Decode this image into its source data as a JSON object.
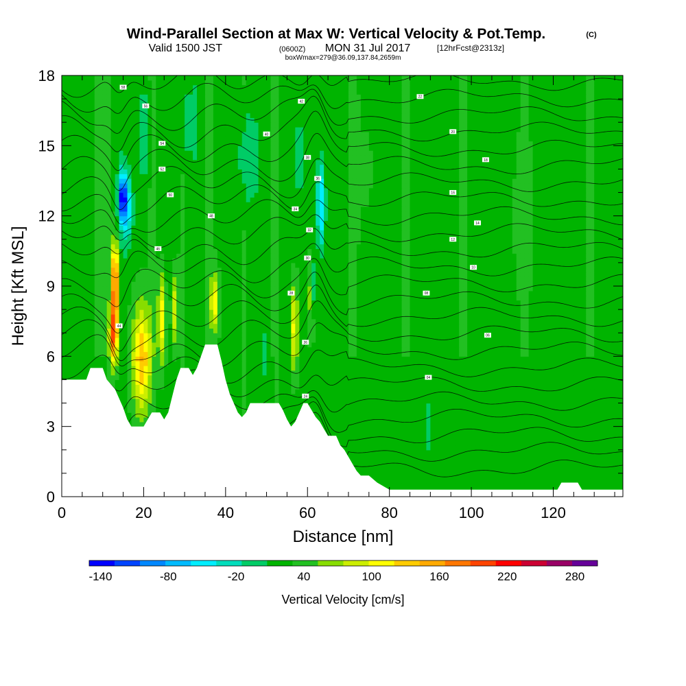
{
  "header": {
    "title": "Wind-Parallel Section at Max W: Vertical Velocity & Pot.Temp.",
    "title_mark": "(C)",
    "valid_prefix": "Valid 1500 JST",
    "valid_zulu": "(0600Z)",
    "valid_date": "MON 31 Jul 2017",
    "forecast": "[12hrFcst@2313z]",
    "boxinfo": "boxWmax=279@36.09,137.84,2659m"
  },
  "chart_data": {
    "type": "heatmap",
    "title": "Wind-Parallel Section at Max W: Vertical Velocity & Pot.Temp.",
    "xlabel": "Distance [nm]",
    "ylabel": "Height [Kft MSL]",
    "xlim": [
      0,
      137
    ],
    "ylim": [
      0,
      18
    ],
    "x_ticks": [
      0,
      20,
      40,
      60,
      80,
      100,
      120
    ],
    "y_ticks": [
      0,
      3,
      6,
      9,
      12,
      15,
      18
    ],
    "colorbar": {
      "label": "Vertical Velocity [cm/s]",
      "tick_labels": [
        "-140",
        "-80",
        "-20",
        "40",
        "100",
        "160",
        "220",
        "280"
      ],
      "tick_values": [
        -140,
        -80,
        -20,
        40,
        100,
        160,
        220,
        280
      ],
      "min": -150,
      "max": 300,
      "step": 20,
      "colors": [
        "#0000ff",
        "#0044ff",
        "#0088ff",
        "#00bbff",
        "#00eeff",
        "#00ddbb",
        "#00cc66",
        "#00b400",
        "#22c022",
        "#88dd00",
        "#ccee00",
        "#ffff00",
        "#ffcc00",
        "#ffaa00",
        "#ff7700",
        "#ff4400",
        "#ff0000",
        "#cc0033",
        "#990066",
        "#660099"
      ]
    },
    "terrain": [
      [
        0,
        5
      ],
      [
        6,
        5
      ],
      [
        7,
        5.5
      ],
      [
        10,
        5.5
      ],
      [
        11,
        5
      ],
      [
        12,
        4.8
      ],
      [
        13,
        4.6
      ],
      [
        14,
        4.2
      ],
      [
        15,
        3.8
      ],
      [
        16,
        3.3
      ],
      [
        17,
        3
      ],
      [
        20,
        3
      ],
      [
        21,
        3.3
      ],
      [
        22,
        3.6
      ],
      [
        24,
        3.6
      ],
      [
        25,
        3.3
      ],
      [
        26,
        3.6
      ],
      [
        27,
        4.3
      ],
      [
        28,
        5
      ],
      [
        29,
        5.5
      ],
      [
        31,
        5.5
      ],
      [
        32,
        5.2
      ],
      [
        33,
        5.5
      ],
      [
        34,
        6
      ],
      [
        35,
        6.5
      ],
      [
        38,
        6.5
      ],
      [
        39,
        5.8
      ],
      [
        40,
        5
      ],
      [
        41,
        4.4
      ],
      [
        42,
        4
      ],
      [
        43,
        3.6
      ],
      [
        44,
        3.4
      ],
      [
        45,
        3.6
      ],
      [
        46,
        4
      ],
      [
        53,
        4
      ],
      [
        54,
        3.7
      ],
      [
        55,
        3.3
      ],
      [
        56,
        3
      ],
      [
        57,
        3.2
      ],
      [
        58,
        3.6
      ],
      [
        59,
        4
      ],
      [
        60,
        4
      ],
      [
        61,
        3.7
      ],
      [
        62,
        3.4
      ],
      [
        63,
        3.2
      ],
      [
        64,
        2.9
      ],
      [
        65,
        2.6
      ],
      [
        67,
        2.6
      ],
      [
        68,
        2.2
      ],
      [
        69,
        2
      ],
      [
        70,
        1.7
      ],
      [
        71,
        1.4
      ],
      [
        72,
        1.1
      ],
      [
        73,
        0.9
      ],
      [
        75,
        0.9
      ],
      [
        77,
        0.6
      ],
      [
        79,
        0.4
      ],
      [
        80,
        0.3
      ],
      [
        121,
        0.3
      ],
      [
        122,
        0.6
      ],
      [
        126,
        0.6
      ],
      [
        127,
        0.3
      ],
      [
        130,
        0.3
      ],
      [
        132,
        0.3
      ],
      [
        137,
        0.3
      ]
    ],
    "contour_labels": [
      {
        "text": "58",
        "x": 15,
        "y": 17.5
      },
      {
        "text": "56",
        "x": 20.5,
        "y": 16.7
      },
      {
        "text": "54",
        "x": 24.5,
        "y": 15.1
      },
      {
        "text": "52",
        "x": 24.5,
        "y": 14.0
      },
      {
        "text": "50",
        "x": 26.5,
        "y": 12.9
      },
      {
        "text": "48",
        "x": 36.5,
        "y": 12.0
      },
      {
        "text": "46",
        "x": 23.5,
        "y": 10.6
      },
      {
        "text": "44",
        "x": 14,
        "y": 7.3
      },
      {
        "text": "42",
        "x": 58.5,
        "y": 16.9
      },
      {
        "text": "40",
        "x": 50,
        "y": 15.5
      },
      {
        "text": "38",
        "x": 60,
        "y": 14.5
      },
      {
        "text": "36",
        "x": 62.5,
        "y": 13.6
      },
      {
        "text": "34",
        "x": 57,
        "y": 12.3
      },
      {
        "text": "32",
        "x": 60.5,
        "y": 11.4
      },
      {
        "text": "30",
        "x": 60,
        "y": 10.2
      },
      {
        "text": "28",
        "x": 56,
        "y": 8.7
      },
      {
        "text": "26",
        "x": 59.5,
        "y": 6.6
      },
      {
        "text": "24",
        "x": 59.5,
        "y": 4.3
      },
      {
        "text": "22",
        "x": 87.5,
        "y": 17.1
      },
      {
        "text": "20",
        "x": 95.5,
        "y": 15.6
      },
      {
        "text": "18",
        "x": 103.5,
        "y": 14.4
      },
      {
        "text": "16",
        "x": 95.5,
        "y": 13.0
      },
      {
        "text": "14",
        "x": 101.5,
        "y": 11.7
      },
      {
        "text": "12",
        "x": 95.5,
        "y": 11.0
      },
      {
        "text": "10",
        "x": 100.5,
        "y": 9.8
      },
      {
        "text": "08",
        "x": 89,
        "y": 8.7
      },
      {
        "text": "06",
        "x": 104,
        "y": 6.9
      },
      {
        "text": "04",
        "x": 89.5,
        "y": 5.1
      }
    ]
  }
}
